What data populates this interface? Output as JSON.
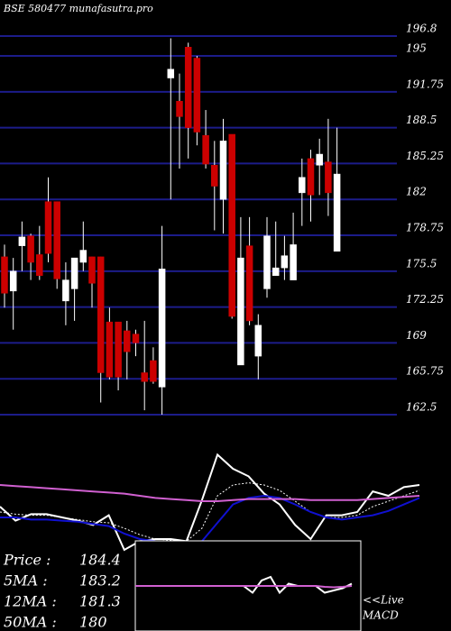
{
  "chart_data": [
    {
      "type": "candlestick",
      "title": "BSE 580477 munafasutra.pro",
      "open": [
        176.8,
        173.7,
        177.8,
        178.7,
        177,
        181.8,
        181.8,
        172.8,
        173.9,
        176.3,
        176.8,
        176.8,
        170.9,
        170.9,
        170.1,
        169.8,
        166.3,
        167.4,
        165,
        193,
        190.9,
        195.8,
        194.8,
        187.8,
        185.1,
        182,
        187.9,
        167,
        177.8,
        167.8,
        173.9,
        175.1,
        175.8,
        174.7,
        182.6,
        185.7,
        185.1,
        185.4,
        177.3
      ],
      "high": [
        177.9,
        176.7,
        180,
        178.9,
        179.6,
        184,
        181.8,
        176.3,
        176.7,
        180,
        176.8,
        176.8,
        172.2,
        170.9,
        171,
        170.2,
        171,
        168.6,
        179.6,
        196.6,
        193.4,
        196.2,
        195,
        190.1,
        187.3,
        189.3,
        187.9,
        180.4,
        180.4,
        171.6,
        180.4,
        180,
        178.7,
        180.8,
        185.7,
        186.5,
        187.5,
        189.3,
        188.5
      ],
      "low": [
        172.2,
        170.2,
        175.5,
        174.7,
        174.7,
        176.3,
        173.9,
        170.6,
        171,
        175.5,
        172.2,
        163.6,
        165.7,
        164.7,
        165.7,
        167.8,
        162.9,
        165.3,
        162.5,
        182,
        184.8,
        185.7,
        186.9,
        184.8,
        179.2,
        178.9,
        171.2,
        167,
        170.6,
        165.7,
        173.1,
        175.1,
        174.7,
        174.7,
        179.6,
        180,
        182.4,
        180.5,
        177.3
      ],
      "close": [
        173.5,
        175.5,
        178.6,
        176.3,
        175.1,
        177.1,
        174.8,
        174.7,
        176.7,
        177.4,
        174.4,
        166.3,
        165.9,
        165.9,
        168.2,
        169,
        165.5,
        165.5,
        175.7,
        193.8,
        189.5,
        188.5,
        188.1,
        185.2,
        183.2,
        187.3,
        171.4,
        176.7,
        171,
        170.6,
        178.7,
        175.8,
        176.9,
        177.9,
        184,
        182.4,
        186.1,
        182.6,
        184.3
      ],
      "up_color": "#ffffff",
      "down_color": "#cc0000",
      "grid_color": "#1c1c8a",
      "ylim": [
        162.5,
        196.8
      ],
      "yticks": [
        196.8,
        195,
        191.75,
        188.5,
        185.25,
        182,
        178.75,
        175.5,
        172.25,
        169,
        165.75,
        162.5
      ]
    },
    {
      "type": "line",
      "ylim": [
        0,
        100
      ],
      "series": [
        {
          "color": "#ffffff",
          "style": "solid",
          "values": [
            40,
            27,
            33,
            33,
            30,
            27,
            23,
            32,
            0,
            8,
            10,
            10,
            8,
            46,
            88,
            75,
            68,
            52,
            42,
            23,
            10,
            32,
            32,
            35,
            54,
            50,
            58,
            60
          ]
        },
        {
          "color": "#ffffff",
          "style": "dotted",
          "values": [
            35,
            33,
            32,
            32,
            30,
            28,
            26,
            25,
            20,
            14,
            10,
            9,
            8,
            20,
            50,
            60,
            62,
            60,
            55,
            45,
            35,
            30,
            30,
            32,
            40,
            45,
            50,
            55
          ]
        },
        {
          "color": "#1010d0",
          "style": "solid",
          "values": [
            30,
            30,
            28,
            28,
            27,
            26,
            24,
            22,
            15,
            10,
            8,
            6,
            5,
            8,
            25,
            42,
            48,
            50,
            48,
            42,
            35,
            30,
            28,
            30,
            32,
            36,
            42,
            48
          ]
        },
        {
          "color": "#d060d0",
          "style": "solid",
          "values": [
            60,
            59,
            58,
            57,
            56,
            55,
            54,
            53,
            52,
            50,
            48,
            47,
            46,
            45,
            45,
            46,
            47,
            47,
            47,
            47,
            46,
            46,
            46,
            46,
            47,
            48,
            49,
            50
          ]
        }
      ],
      "readout": [
        {
          "label": "Price  :",
          "value": 184.4
        },
        {
          "label": "5MA :",
          "value": 183.2
        },
        {
          "label": "12MA :",
          "value": 181.3
        },
        {
          "label": "50MA :",
          "value": 180
        }
      ]
    },
    {
      "type": "macd",
      "ylim": [
        -1,
        1
      ],
      "label": "<<Live",
      "name": "MACD",
      "series": [
        {
          "color": "#ffffff",
          "values": [
            0,
            0,
            0,
            0,
            0,
            0,
            0,
            0,
            0,
            0,
            0,
            0,
            0,
            -0.15,
            0.12,
            0.2,
            -0.15,
            0.05,
            0,
            0,
            0,
            -0.15,
            -0.1,
            -0.05,
            0.05
          ]
        },
        {
          "color": "#d060d0",
          "values": [
            0,
            0,
            0,
            0,
            0,
            0,
            0,
            0,
            0,
            0,
            0,
            0,
            0,
            0,
            0,
            0,
            0,
            0,
            0,
            0,
            0,
            -0.02,
            -0.03,
            -0.02,
            0
          ]
        }
      ]
    }
  ]
}
